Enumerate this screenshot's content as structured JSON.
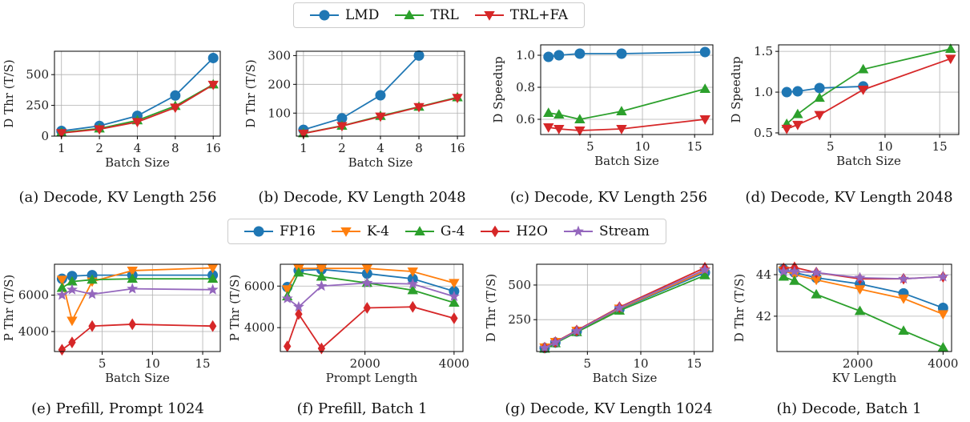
{
  "legends": [
    {
      "entries": [
        {
          "label": "LMD",
          "color": "#1f77b4",
          "marker": "circle"
        },
        {
          "label": "TRL",
          "color": "#2ca02c",
          "marker": "triangle-up"
        },
        {
          "label": "TRL+FA",
          "color": "#d62728",
          "marker": "triangle-down"
        }
      ]
    },
    {
      "entries": [
        {
          "label": "FP16",
          "color": "#1f77b4",
          "marker": "circle"
        },
        {
          "label": "K-4",
          "color": "#ff7f0e",
          "marker": "triangle-down"
        },
        {
          "label": "G-4",
          "color": "#2ca02c",
          "marker": "triangle-up"
        },
        {
          "label": "H2O",
          "color": "#d62728",
          "marker": "diamond"
        },
        {
          "label": "Stream",
          "color": "#9467bd",
          "marker": "star"
        }
      ]
    }
  ],
  "chart_data": [
    {
      "type": "line",
      "caption": "(a) Decode, KV Length 256",
      "xlabel": "Batch Size",
      "ylabel": "D Thr (T/S)",
      "xscale": "log2",
      "xlim": [
        0.88,
        18.2
      ],
      "ylim": [
        0,
        690
      ],
      "xticks": [
        1,
        2,
        4,
        8,
        16
      ],
      "xticklabels": [
        "1",
        "2",
        "4",
        "8",
        "16"
      ],
      "yticks": [
        0,
        250,
        500
      ],
      "grid": true,
      "series": [
        {
          "name": "LMD",
          "color": "#1f77b4",
          "marker": "circle",
          "x": [
            1,
            2,
            4,
            8,
            16
          ],
          "y": [
            42,
            83,
            165,
            330,
            635
          ]
        },
        {
          "name": "TRL",
          "color": "#2ca02c",
          "marker": "triangle-up",
          "x": [
            1,
            2,
            4,
            8,
            16
          ],
          "y": [
            30,
            62,
            128,
            245,
            420
          ]
        },
        {
          "name": "TRL+FA",
          "color": "#d62728",
          "marker": "triangle-down",
          "x": [
            1,
            2,
            4,
            8,
            16
          ],
          "y": [
            25,
            56,
            115,
            232,
            418
          ]
        }
      ]
    },
    {
      "type": "line",
      "caption": "(b) Decode, KV Length 2048",
      "xlabel": "Batch Size",
      "ylabel": "D Thr (T/S)",
      "xscale": "log2",
      "xlim": [
        0.88,
        18.2
      ],
      "ylim": [
        20,
        315
      ],
      "xticks": [
        1,
        2,
        4,
        8,
        16
      ],
      "xticklabels": [
        "1",
        "2",
        "4",
        "8",
        "16"
      ],
      "yticks": [
        100,
        200,
        300
      ],
      "grid": true,
      "series": [
        {
          "name": "LMD",
          "color": "#1f77b4",
          "marker": "circle",
          "x": [
            1,
            2,
            4,
            8
          ],
          "y": [
            42,
            82,
            162,
            300
          ]
        },
        {
          "name": "TRL",
          "color": "#2ca02c",
          "marker": "triangle-up",
          "x": [
            1,
            2,
            4,
            8,
            16
          ],
          "y": [
            30,
            56,
            90,
            122,
            155
          ]
        },
        {
          "name": "TRL+FA",
          "color": "#d62728",
          "marker": "triangle-down",
          "x": [
            1,
            2,
            4,
            8,
            16
          ],
          "y": [
            29,
            55,
            88,
            121,
            153
          ]
        }
      ]
    },
    {
      "type": "line",
      "caption": "(c) Decode, KV Length 256",
      "xlabel": "Batch Size",
      "ylabel": "D Speedup",
      "xscale": "linear",
      "xlim": [
        0.25,
        16.75
      ],
      "ylim": [
        0.505,
        1.065
      ],
      "xticks": [
        5,
        10,
        15
      ],
      "xticklabels": [
        "5",
        "10",
        "15"
      ],
      "yticks": [
        0.6,
        0.8,
        1.0
      ],
      "yticklabels": [
        "0.6",
        "0.8",
        "1.0"
      ],
      "grid": true,
      "series": [
        {
          "name": "LMD",
          "color": "#1f77b4",
          "marker": "circle",
          "x": [
            1,
            2,
            4,
            8,
            16
          ],
          "y": [
            0.99,
            1.0,
            1.01,
            1.01,
            1.02
          ]
        },
        {
          "name": "TRL",
          "color": "#2ca02c",
          "marker": "triangle-up",
          "x": [
            1,
            2,
            4,
            8,
            16
          ],
          "y": [
            0.64,
            0.63,
            0.6,
            0.65,
            0.79
          ]
        },
        {
          "name": "TRL+FA",
          "color": "#d62728",
          "marker": "triangle-down",
          "x": [
            1,
            2,
            4,
            8,
            16
          ],
          "y": [
            0.55,
            0.54,
            0.53,
            0.54,
            0.6
          ]
        }
      ]
    },
    {
      "type": "line",
      "caption": "(d) Decode, KV Length 2048",
      "xlabel": "Batch Size",
      "ylabel": "D Speedup",
      "xscale": "linear",
      "xlim": [
        0.25,
        16.75
      ],
      "ylim": [
        0.48,
        1.58
      ],
      "xticks": [
        5,
        10,
        15
      ],
      "xticklabels": [
        "5",
        "10",
        "15"
      ],
      "yticks": [
        0.5,
        1.0,
        1.5
      ],
      "yticklabels": [
        "0.5",
        "1.0",
        "1.5"
      ],
      "grid": true,
      "series": [
        {
          "name": "LMD",
          "color": "#1f77b4",
          "marker": "circle",
          "x": [
            1,
            2,
            4,
            8
          ],
          "y": [
            1.0,
            1.01,
            1.05,
            1.07
          ]
        },
        {
          "name": "TRL",
          "color": "#2ca02c",
          "marker": "triangle-up",
          "x": [
            1,
            2,
            4,
            8,
            16
          ],
          "y": [
            0.61,
            0.73,
            0.93,
            1.28,
            1.53
          ]
        },
        {
          "name": "TRL+FA",
          "color": "#d62728",
          "marker": "triangle-down",
          "x": [
            1,
            2,
            4,
            8,
            16
          ],
          "y": [
            0.55,
            0.6,
            0.72,
            1.03,
            1.41
          ]
        }
      ]
    },
    {
      "type": "line",
      "caption": "(e) Prefill, Prompt 1024",
      "xlabel": "Batch Size",
      "ylabel": "P Thr (T/S)",
      "xscale": "linear",
      "xlim": [
        0.25,
        16.75
      ],
      "ylim": [
        2900,
        7700
      ],
      "xticks": [
        5,
        10,
        15
      ],
      "xticklabels": [
        "5",
        "10",
        "15"
      ],
      "yticks": [
        4000,
        6000
      ],
      "grid": true,
      "series": [
        {
          "name": "FP16",
          "color": "#1f77b4",
          "marker": "circle",
          "x": [
            1,
            2,
            4,
            8,
            16
          ],
          "y": [
            6900,
            7050,
            7100,
            7100,
            7100
          ]
        },
        {
          "name": "K-4",
          "color": "#ff7f0e",
          "marker": "triangle-down",
          "x": [
            1,
            2,
            4,
            8,
            16
          ],
          "y": [
            6850,
            4600,
            6750,
            7350,
            7500
          ]
        },
        {
          "name": "G-4",
          "color": "#2ca02c",
          "marker": "triangle-up",
          "x": [
            1,
            2,
            4,
            8,
            16
          ],
          "y": [
            6400,
            6750,
            6850,
            6900,
            6900
          ]
        },
        {
          "name": "H2O",
          "color": "#d62728",
          "marker": "diamond",
          "x": [
            1,
            2,
            4,
            8,
            16
          ],
          "y": [
            3000,
            3400,
            4300,
            4400,
            4300
          ]
        },
        {
          "name": "Stream",
          "color": "#9467bd",
          "marker": "star",
          "x": [
            1,
            2,
            4,
            8,
            16
          ],
          "y": [
            6000,
            6300,
            6050,
            6350,
            6300
          ]
        }
      ]
    },
    {
      "type": "line",
      "caption": "(f) Prefill, Batch 1",
      "xlabel": "Prompt Length",
      "ylabel": "P Thr (T/S)",
      "xscale": "linear",
      "xlim": [
        100,
        4200
      ],
      "ylim": [
        2850,
        7050
      ],
      "xticks": [
        2000,
        4000
      ],
      "xticklabels": [
        "2000",
        "4000"
      ],
      "yticks": [
        4000,
        6000
      ],
      "grid": true,
      "series": [
        {
          "name": "FP16",
          "color": "#1f77b4",
          "marker": "circle",
          "x": [
            256,
            512,
            1024,
            2048,
            3072,
            4000
          ],
          "y": [
            5950,
            6750,
            6800,
            6600,
            6350,
            5750
          ]
        },
        {
          "name": "K-4",
          "color": "#ff7f0e",
          "marker": "triangle-down",
          "x": [
            256,
            512,
            1024,
            2048,
            3072,
            4000
          ],
          "y": [
            5850,
            6850,
            6850,
            6850,
            6700,
            6150
          ]
        },
        {
          "name": "G-4",
          "color": "#2ca02c",
          "marker": "triangle-up",
          "x": [
            256,
            512,
            1024,
            2048,
            3072,
            4000
          ],
          "y": [
            5500,
            6650,
            6450,
            6150,
            5800,
            5200
          ]
        },
        {
          "name": "H2O",
          "color": "#d62728",
          "marker": "diamond",
          "x": [
            256,
            512,
            1024,
            2048,
            3072,
            4000
          ],
          "y": [
            3100,
            4650,
            3000,
            4950,
            5000,
            4450
          ]
        },
        {
          "name": "Stream",
          "color": "#9467bd",
          "marker": "star",
          "x": [
            256,
            512,
            1024,
            2048,
            3072,
            4000
          ],
          "y": [
            5400,
            5000,
            6000,
            6150,
            6100,
            5500
          ]
        }
      ]
    },
    {
      "type": "line",
      "caption": "(g) Decode, KV Length 1024",
      "xlabel": "Batch Size",
      "ylabel": "D Thr (T/S)",
      "xscale": "linear",
      "xlim": [
        0.25,
        16.75
      ],
      "ylim": [
        20,
        650
      ],
      "xticks": [
        5,
        10,
        15
      ],
      "xticklabels": [
        "5",
        "10",
        "15"
      ],
      "yticks": [
        250,
        500
      ],
      "grid": true,
      "series": [
        {
          "name": "FP16",
          "color": "#1f77b4",
          "marker": "circle",
          "x": [
            1,
            2,
            4,
            8,
            16
          ],
          "y": [
            45,
            85,
            165,
            325,
            590
          ]
        },
        {
          "name": "K-4",
          "color": "#ff7f0e",
          "marker": "triangle-down",
          "x": [
            1,
            2,
            4,
            8,
            16
          ],
          "y": [
            50,
            90,
            170,
            330,
            600
          ]
        },
        {
          "name": "G-4",
          "color": "#2ca02c",
          "marker": "triangle-up",
          "x": [
            1,
            2,
            4,
            8,
            16
          ],
          "y": [
            40,
            80,
            160,
            315,
            570
          ]
        },
        {
          "name": "H2O",
          "color": "#d62728",
          "marker": "diamond",
          "x": [
            1,
            2,
            4,
            8,
            16
          ],
          "y": [
            48,
            88,
            172,
            340,
            625
          ]
        },
        {
          "name": "Stream",
          "color": "#9467bd",
          "marker": "star",
          "x": [
            1,
            2,
            4,
            8,
            16
          ],
          "y": [
            46,
            86,
            168,
            335,
            610
          ]
        }
      ]
    },
    {
      "type": "line",
      "caption": "(h) Decode, Batch 1",
      "xlabel": "KV Length",
      "ylabel": "D Thr (T/S)",
      "xscale": "linear",
      "xlim": [
        100,
        4200
      ],
      "ylim": [
        40.3,
        44.5
      ],
      "xticks": [
        2000,
        4000
      ],
      "xticklabels": [
        "2000",
        "4000"
      ],
      "yticks": [
        42,
        44
      ],
      "grid": true,
      "series": [
        {
          "name": "FP16",
          "color": "#1f77b4",
          "marker": "circle",
          "x": [
            256,
            512,
            1024,
            2048,
            3072,
            4000
          ],
          "y": [
            44.25,
            44.1,
            43.85,
            43.55,
            43.1,
            42.4
          ]
        },
        {
          "name": "K-4",
          "color": "#ff7f0e",
          "marker": "triangle-down",
          "x": [
            256,
            512,
            1024,
            2048,
            3072,
            4000
          ],
          "y": [
            44.2,
            44.0,
            43.75,
            43.3,
            42.85,
            42.1
          ]
        },
        {
          "name": "G-4",
          "color": "#2ca02c",
          "marker": "triangle-up",
          "x": [
            256,
            512,
            1024,
            2048,
            3072,
            4000
          ],
          "y": [
            43.9,
            43.7,
            43.05,
            42.25,
            41.3,
            40.5
          ]
        },
        {
          "name": "H2O",
          "color": "#d62728",
          "marker": "diamond",
          "x": [
            256,
            512,
            1024,
            2048,
            3072,
            4000
          ],
          "y": [
            44.3,
            44.35,
            44.1,
            43.8,
            43.8,
            43.9
          ]
        },
        {
          "name": "Stream",
          "color": "#9467bd",
          "marker": "star",
          "x": [
            256,
            512,
            1024,
            2048,
            3072,
            4000
          ],
          "y": [
            44.15,
            44.15,
            44.1,
            43.85,
            43.8,
            43.9
          ]
        }
      ]
    }
  ]
}
